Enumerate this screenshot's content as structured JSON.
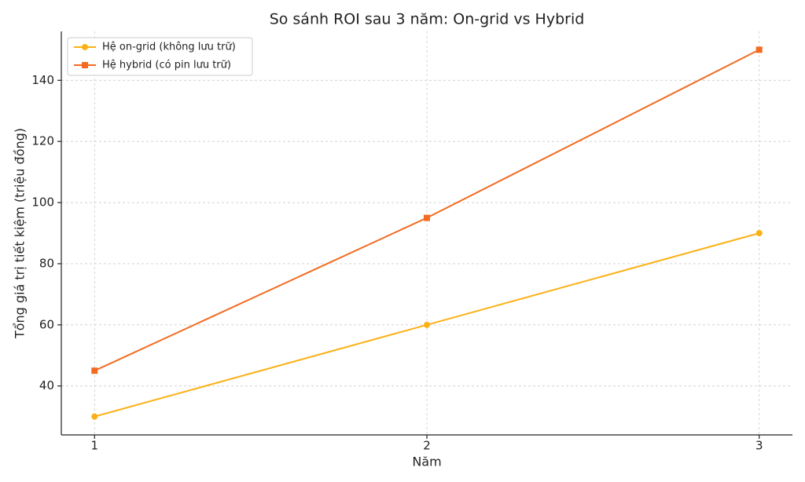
{
  "chart_data": {
    "type": "line",
    "title": "So sánh ROI sau 3 năm: On-grid vs Hybrid",
    "xlabel": "Năm",
    "ylabel": "Tổng giá trị tiết kiệm (triệu đồng)",
    "x": [
      1,
      2,
      3
    ],
    "series": [
      {
        "name": "Hệ on-grid (không lưu trữ)",
        "color": "#fbb116",
        "marker": "circle",
        "values": [
          30,
          60,
          90
        ]
      },
      {
        "name": "Hệ hybrid (có pin lưu trữ)",
        "color": "#f26b21",
        "marker": "square",
        "values": [
          45,
          95,
          150
        ]
      }
    ],
    "xlim": [
      0.9,
      3.1
    ],
    "ylim": [
      24,
      156
    ],
    "xticks": [
      1,
      2,
      3
    ],
    "yticks": [
      40,
      60,
      80,
      100,
      120,
      140
    ],
    "grid": true,
    "legend": "upper-left"
  }
}
